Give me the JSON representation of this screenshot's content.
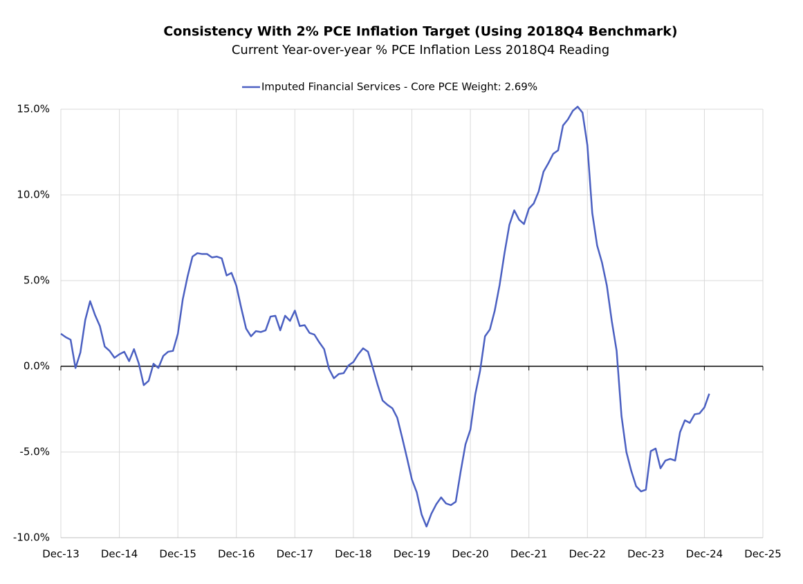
{
  "chart_data": {
    "type": "line",
    "title": "Consistency With 2% PCE Inflation Target (Using 2018Q4 Benchmark)",
    "subtitle": "Current Year-over-year % PCE Inflation Less 2018Q4 Reading",
    "legend": "top",
    "grid": true,
    "x": [
      "2013-12",
      "2014-01",
      "2014-02",
      "2014-03",
      "2014-04",
      "2014-05",
      "2014-06",
      "2014-07",
      "2014-08",
      "2014-09",
      "2014-10",
      "2014-11",
      "2014-12",
      "2015-01",
      "2015-02",
      "2015-03",
      "2015-04",
      "2015-05",
      "2015-06",
      "2015-07",
      "2015-08",
      "2015-09",
      "2015-10",
      "2015-11",
      "2015-12",
      "2016-01",
      "2016-02",
      "2016-03",
      "2016-04",
      "2016-05",
      "2016-06",
      "2016-07",
      "2016-08",
      "2016-09",
      "2016-10",
      "2016-11",
      "2016-12",
      "2017-01",
      "2017-02",
      "2017-03",
      "2017-04",
      "2017-05",
      "2017-06",
      "2017-07",
      "2017-08",
      "2017-09",
      "2017-10",
      "2017-11",
      "2017-12",
      "2018-01",
      "2018-02",
      "2018-03",
      "2018-04",
      "2018-05",
      "2018-06",
      "2018-07",
      "2018-08",
      "2018-09",
      "2018-10",
      "2018-11",
      "2018-12",
      "2019-01",
      "2019-02",
      "2019-03",
      "2019-04",
      "2019-05",
      "2019-06",
      "2019-07",
      "2019-08",
      "2019-09",
      "2019-10",
      "2019-11",
      "2019-12",
      "2020-01",
      "2020-02",
      "2020-03",
      "2020-04",
      "2020-05",
      "2020-06",
      "2020-07",
      "2020-08",
      "2020-09",
      "2020-10",
      "2020-11",
      "2020-12",
      "2021-01",
      "2021-02",
      "2021-03",
      "2021-04",
      "2021-05",
      "2021-06",
      "2021-07",
      "2021-08",
      "2021-09",
      "2021-10",
      "2021-11",
      "2021-12",
      "2022-01",
      "2022-02",
      "2022-03",
      "2022-04",
      "2022-05",
      "2022-06",
      "2022-07",
      "2022-08",
      "2022-09",
      "2022-10",
      "2022-11",
      "2022-12",
      "2023-01",
      "2023-02",
      "2023-03",
      "2023-04",
      "2023-05",
      "2023-06",
      "2023-07",
      "2023-08",
      "2023-09",
      "2023-10",
      "2023-11",
      "2023-12",
      "2024-01",
      "2024-02",
      "2024-03",
      "2024-04",
      "2024-05",
      "2024-06",
      "2024-07",
      "2024-08",
      "2024-09",
      "2024-10",
      "2024-11",
      "2024-12",
      "2025-01"
    ],
    "series": [
      {
        "name": "Imputed Financial Services - Core PCE Weight: 2.69%",
        "color": "#4a5fc1",
        "values": [
          1.9,
          1.7,
          1.55,
          -0.1,
          0.8,
          2.7,
          3.8,
          3.0,
          2.35,
          1.15,
          0.9,
          0.5,
          0.7,
          0.85,
          0.3,
          1.0,
          0.15,
          -1.1,
          -0.85,
          0.15,
          -0.1,
          0.6,
          0.85,
          0.9,
          1.9,
          3.9,
          5.25,
          6.4,
          6.6,
          6.55,
          6.55,
          6.35,
          6.4,
          6.3,
          5.3,
          5.45,
          4.7,
          3.4,
          2.2,
          1.75,
          2.05,
          2.0,
          2.1,
          2.9,
          2.95,
          2.1,
          2.95,
          2.65,
          3.25,
          2.35,
          2.4,
          1.95,
          1.85,
          1.4,
          1.0,
          -0.15,
          -0.7,
          -0.45,
          -0.4,
          0.05,
          0.25,
          0.7,
          1.05,
          0.85,
          -0.1,
          -1.1,
          -2.0,
          -2.25,
          -2.45,
          -3.0,
          -4.15,
          -5.35,
          -6.6,
          -7.35,
          -8.65,
          -9.35,
          -8.6,
          -8.05,
          -7.65,
          -8.0,
          -8.1,
          -7.9,
          -6.15,
          -4.55,
          -3.7,
          -1.65,
          -0.25,
          1.75,
          2.15,
          3.25,
          4.75,
          6.6,
          8.25,
          9.1,
          8.55,
          8.3,
          9.2,
          9.5,
          10.2,
          11.35,
          11.85,
          12.4,
          12.6,
          14.05,
          14.4,
          14.9,
          15.15,
          14.8,
          12.9,
          8.95,
          7.05,
          6.05,
          4.7,
          2.65,
          0.9,
          -2.9,
          -5.0,
          -6.1,
          -7.0,
          -7.3,
          -7.2,
          -4.95,
          -4.8,
          -5.95,
          -5.5,
          -5.4,
          -5.5,
          -3.85,
          -3.15,
          -3.3,
          -2.8,
          -2.75,
          -2.4,
          -1.6
        ]
      }
    ],
    "xlim": [
      "2013-12",
      "2025-12"
    ],
    "xticks": [
      {
        "value": "2013-12",
        "label": "Dec-13"
      },
      {
        "value": "2014-12",
        "label": "Dec-14"
      },
      {
        "value": "2015-12",
        "label": "Dec-15"
      },
      {
        "value": "2016-12",
        "label": "Dec-16"
      },
      {
        "value": "2017-12",
        "label": "Dec-17"
      },
      {
        "value": "2018-12",
        "label": "Dec-18"
      },
      {
        "value": "2019-12",
        "label": "Dec-19"
      },
      {
        "value": "2020-12",
        "label": "Dec-20"
      },
      {
        "value": "2021-12",
        "label": "Dec-21"
      },
      {
        "value": "2022-12",
        "label": "Dec-22"
      },
      {
        "value": "2023-12",
        "label": "Dec-23"
      },
      {
        "value": "2024-12",
        "label": "Dec-24"
      },
      {
        "value": "2025-12",
        "label": "Dec-25"
      }
    ],
    "ylim": [
      -10,
      15
    ],
    "yticks": [
      {
        "value": -10,
        "label": "-10.0%"
      },
      {
        "value": -5,
        "label": "-5.0%"
      },
      {
        "value": 0,
        "label": "0.0%"
      },
      {
        "value": 5,
        "label": "5.0%"
      },
      {
        "value": 10,
        "label": "10.0%"
      },
      {
        "value": 15,
        "label": "15.0%"
      }
    ]
  }
}
